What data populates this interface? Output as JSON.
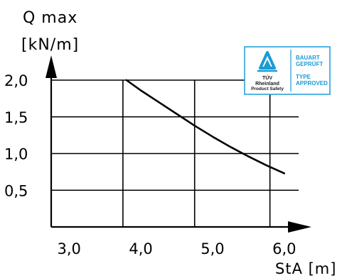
{
  "chart_data": {
    "type": "line",
    "ylabel_line1": "Q max",
    "ylabel_line2": "[kN/m]",
    "xlabel": "StA [m]",
    "xlim": [
      2.75,
      6.2
    ],
    "ylim": [
      0.0,
      2.0
    ],
    "x_ticks": [
      "3,0",
      "4,0",
      "5,0",
      "6,0"
    ],
    "y_ticks": [
      "2,0",
      "1,5",
      "1,0",
      "0,5"
    ],
    "x_tick_values": [
      3.0,
      4.0,
      5.0,
      6.0
    ],
    "y_tick_values": [
      2.0,
      1.5,
      1.0,
      0.5
    ],
    "x_grid_values": [
      2.75,
      3.75,
      4.75,
      5.8
    ],
    "grid": true,
    "series": [
      {
        "x": [
          3.8,
          4.0,
          4.25,
          4.5,
          4.75,
          5.0,
          5.25,
          5.5,
          5.75,
          6.0
        ],
        "y": [
          2.0,
          1.86,
          1.7,
          1.54,
          1.38,
          1.23,
          1.09,
          0.96,
          0.84,
          0.73
        ]
      }
    ]
  },
  "badge": {
    "brand_name": "TÜV",
    "brand_line2": "Rheinland",
    "brand_line3": "Product Safety",
    "line1": "BAUART",
    "line2": "GEPRÜFT",
    "line3": "TYPE",
    "line4": "APPROVED",
    "color": "#1a9bd7"
  }
}
